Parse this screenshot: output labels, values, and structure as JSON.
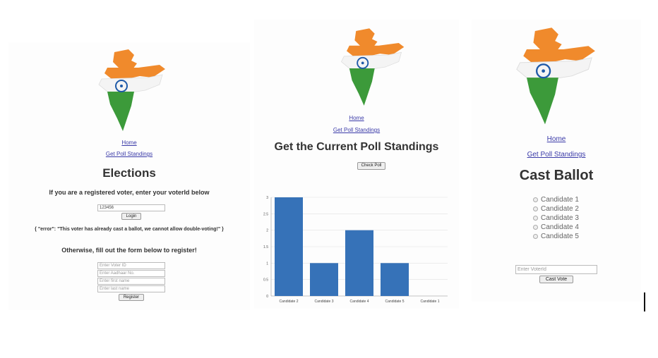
{
  "colors": {
    "saffron": "#f08a2c",
    "green": "#3c9a3a",
    "chakra": "#1f5aa8",
    "link": "#3a3aa8",
    "bar": "#3672b8"
  },
  "login_page": {
    "nav": {
      "home": "Home",
      "poll": "Get Poll Standings"
    },
    "title": "Elections",
    "prompt": "If you are a registered voter, enter your voterId below",
    "voter_id_value": "123456",
    "login_label": "Login",
    "error": "{ \"error\": \"This voter has already cast a ballot, we cannot allow double-voting!\" }",
    "register_prompt": "Otherwise, fill out the form below to register!",
    "register_fields": [
      {
        "placeholder": "Enter Voter ID"
      },
      {
        "placeholder": "Enter Aadhaar No."
      },
      {
        "placeholder": "Enter first name"
      },
      {
        "placeholder": "Enter last name"
      }
    ],
    "register_label": "Register"
  },
  "poll_page": {
    "nav": {
      "home": "Home",
      "poll": "Get Poll Standings"
    },
    "title": "Get the Current Poll Standings",
    "check_label": "Check Poll"
  },
  "chart_data": {
    "type": "bar",
    "categories": [
      "Candidate 2",
      "Candidate 3",
      "Candidate 4",
      "Candidate 5",
      "Candidate 1"
    ],
    "values": [
      3,
      1,
      2,
      1,
      0
    ],
    "ylim": [
      0,
      3
    ],
    "yticks": [
      0,
      0.5,
      1,
      1.5,
      2,
      2.5,
      3
    ],
    "ytick_labels": [
      "0",
      "0.5",
      "1",
      "1.5",
      "2",
      "2.5",
      "3"
    ],
    "grid": true
  },
  "ballot_page": {
    "nav": {
      "home": "Home",
      "poll": "Get Poll Standings"
    },
    "title": "Cast Ballot",
    "candidates": [
      "Candidate 1",
      "Candidate 2",
      "Candidate 3",
      "Candidate 4",
      "Candidate 5"
    ],
    "voter_placeholder": "Enter VoterId",
    "cast_label": "Cast Vote"
  }
}
